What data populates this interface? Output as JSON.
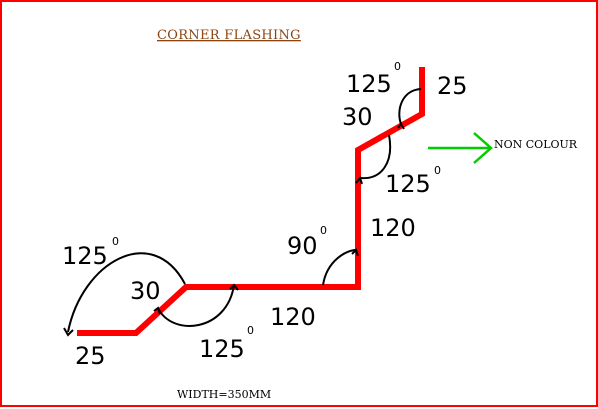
{
  "title": "CORNER FLASHING",
  "width_note": "WIDTH=350MM",
  "non_colour_note": "NON COLOUR",
  "colors": {
    "profile": "#ff0000",
    "arrow": "#00cc00",
    "title": "#8b4513",
    "border": "#ff0000"
  },
  "segments": [
    "25",
    "30",
    "120",
    "120",
    "30",
    "25"
  ],
  "angles": [
    {
      "value": "125",
      "unit": "0"
    },
    {
      "value": "125",
      "unit": "0"
    },
    {
      "value": "90",
      "unit": "0"
    },
    {
      "value": "125",
      "unit": "0"
    },
    {
      "value": "125",
      "unit": "0"
    }
  ]
}
